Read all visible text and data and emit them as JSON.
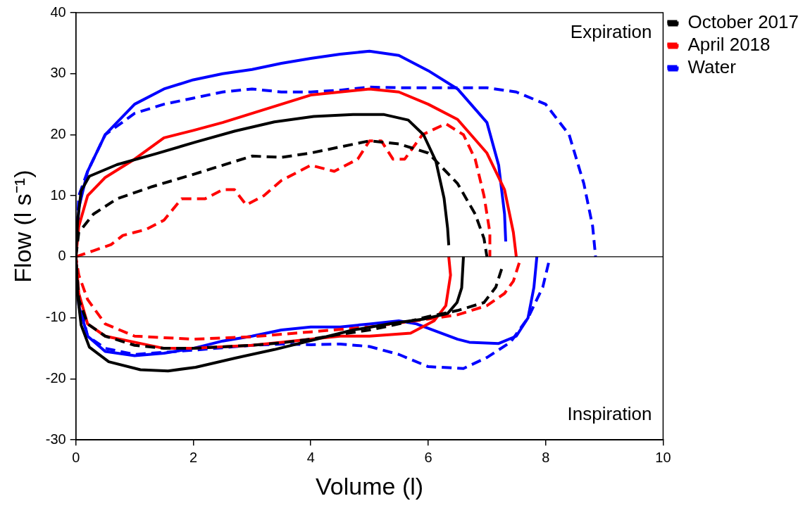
{
  "chart_data": {
    "type": "line",
    "xlabel": "Volume (l)",
    "ylabel": "Flow (l s⁻¹)",
    "xlim": [
      0,
      10
    ],
    "xticks": [
      0,
      2,
      4,
      6,
      8,
      10
    ],
    "ylim": [
      -30,
      40
    ],
    "yticks": [
      -30,
      -20,
      -10,
      0,
      10,
      20,
      30,
      40
    ],
    "grid": false,
    "legend": "top right",
    "marker": "none",
    "ref_lines": [
      {
        "axis": "y",
        "value": 0,
        "color": "#000000"
      }
    ],
    "annotations": [
      "Expiration",
      "Inspiration"
    ],
    "series": [
      {
        "color": "#000000",
        "line_style": "solid",
        "x": [
          0,
          0.03,
          0.09,
          0.23,
          0.7,
          1.37,
          2.04,
          2.71,
          3.38,
          4.05,
          4.72,
          5.25,
          5.66,
          5.92,
          6.13,
          6.27,
          6.33,
          6.35,
          6.5,
          6.6,
          6.57,
          6.49,
          6.33,
          5.92,
          5.39,
          4.72,
          4.05,
          3.38,
          2.71,
          2.04,
          1.57,
          1.1,
          0.56,
          0.23,
          0.09,
          0.03,
          0
        ],
        "values": [
          0,
          5.9,
          10.8,
          13.2,
          15.1,
          16.9,
          18.8,
          20.6,
          22.1,
          23,
          23.3,
          23.3,
          22.4,
          20,
          15.7,
          9.6,
          4.7,
          1.9,
          null,
          0,
          -5.1,
          -7.5,
          -9.3,
          -10.2,
          -10.9,
          -12,
          -13.6,
          -15.2,
          -16.6,
          -18.1,
          -18.7,
          -18.5,
          -17.2,
          -14.8,
          -11.2,
          -6.3,
          0
        ]
      },
      {
        "name": "October 2017",
        "color": "#000000",
        "line_style": "dashed",
        "x": [
          0,
          0.05,
          0.3,
          0.7,
          1.3,
          2,
          2.5,
          3,
          3.5,
          4,
          4.5,
          5,
          5.5,
          6,
          6.5,
          6.8,
          6.95,
          7,
          7.1,
          7.25,
          7.15,
          6.95,
          6.5,
          6,
          5.5,
          5,
          4.5,
          4,
          3.5,
          3,
          2,
          1.5,
          1,
          0.5,
          0.2,
          0.05,
          0
        ],
        "values": [
          0,
          4,
          7,
          9.5,
          11.5,
          13.5,
          15,
          16.5,
          16.3,
          17,
          18,
          19,
          18.5,
          17,
          12,
          7,
          3,
          0,
          null,
          -2,
          -5,
          -7.5,
          -8.8,
          -9.8,
          -11,
          -12,
          -12.7,
          -13.5,
          -14.1,
          -14.5,
          -15,
          -15,
          -14.5,
          -13,
          -11,
          -7,
          0
        ]
      },
      {
        "color": "#ff0000",
        "line_style": "solid",
        "x": [
          0,
          0.05,
          0.2,
          0.5,
          1,
          1.5,
          2,
          2.5,
          3,
          3.5,
          4,
          4.5,
          5,
          5.5,
          6,
          6.5,
          7,
          7.3,
          7.45,
          7.5,
          7,
          6.35,
          6.38,
          6.3,
          6.1,
          5.7,
          5,
          4.5,
          4,
          3.5,
          3,
          2,
          1.5,
          1,
          0.5,
          0.2,
          0.05,
          0
        ],
        "values": [
          0,
          5,
          10,
          13,
          16,
          19.5,
          20.7,
          22,
          23.5,
          25,
          26.5,
          27,
          27.5,
          27,
          25,
          22.5,
          17,
          11,
          4,
          0,
          null,
          0,
          -3,
          -8,
          -10.5,
          -12.5,
          -13,
          -13,
          -13.5,
          -14,
          -14.5,
          -15,
          -15,
          -14,
          -13,
          -11,
          -6,
          0
        ]
      },
      {
        "name": "April 2018",
        "color": "#ff0000",
        "line_style": "dashed",
        "x": [
          0,
          0.3,
          0.6,
          0.8,
          1,
          1.2,
          1.5,
          1.8,
          2.2,
          2.5,
          2.7,
          2.9,
          3.2,
          3.5,
          4,
          4.4,
          4.8,
          5,
          5.2,
          5.4,
          5.6,
          5.9,
          6.3,
          6.6,
          6.8,
          6.95,
          7.05,
          7.05,
          7.3,
          7.55,
          7.45,
          7.3,
          7,
          6.5,
          6,
          5,
          4,
          3,
          2,
          1,
          0.5,
          0.2,
          0.05,
          0
        ],
        "values": [
          0,
          1,
          2,
          3.5,
          4,
          4.5,
          6,
          9.5,
          9.5,
          11,
          11,
          8.5,
          10,
          12.5,
          15,
          14,
          16,
          19,
          19,
          16,
          16,
          20,
          21.8,
          20,
          16,
          10,
          4,
          0,
          null,
          -1,
          -4,
          -6,
          -8,
          -9.5,
          -10.2,
          -11.5,
          -12.3,
          -13.1,
          -13.5,
          -13,
          -11,
          -7,
          -3,
          0
        ]
      },
      {
        "color": "#0000ff",
        "line_style": "solid",
        "x": [
          0,
          0.05,
          0.2,
          0.5,
          1,
          1.5,
          2,
          2.5,
          3,
          3.5,
          4,
          4.5,
          5,
          5.5,
          6,
          6.5,
          7,
          7.2,
          7.3,
          7.32,
          7.6,
          7.85,
          7.8,
          7.7,
          7.5,
          7.2,
          6.7,
          6.5,
          5.8,
          5.5,
          5,
          4.5,
          4,
          3.5,
          3,
          2.5,
          2,
          1.5,
          1,
          0.5,
          0.2,
          0.05,
          0
        ],
        "values": [
          0,
          8,
          14,
          20,
          25,
          27.5,
          29,
          30,
          30.7,
          31.7,
          32.5,
          33.2,
          33.7,
          33,
          30.5,
          27.5,
          22,
          15,
          7,
          2.5,
          null,
          0,
          -5,
          -10,
          -13,
          -14.2,
          -14,
          -13.5,
          -11,
          -10.5,
          -11,
          -11.5,
          -11.5,
          -12,
          -13,
          -13.8,
          -15,
          -15.8,
          -16.2,
          -15.5,
          -13,
          -8,
          0
        ]
      },
      {
        "name": "Water",
        "color": "#0000ff",
        "line_style": "dashed",
        "x": [
          0,
          0.05,
          0.2,
          0.5,
          1,
          1.5,
          2,
          2.5,
          3,
          3.5,
          4,
          4.5,
          5,
          5.5,
          6,
          7,
          7.5,
          8,
          8.4,
          8.65,
          8.8,
          8.85,
          8.45,
          8.05,
          7.95,
          7.7,
          7.4,
          7,
          6.6,
          6,
          5.5,
          5,
          4.5,
          4,
          3.5,
          3,
          2,
          1,
          0.5,
          0.2,
          0.05,
          0
        ],
        "values": [
          0,
          10,
          14,
          20,
          23.5,
          25,
          26,
          27,
          27.5,
          27,
          27,
          27.3,
          27.8,
          27.7,
          27.7,
          27.7,
          27,
          25,
          20,
          12,
          5,
          0,
          null,
          -1,
          -5,
          -10,
          -14,
          -16.5,
          -18.3,
          -18,
          -16,
          -14.7,
          -14.3,
          -14.4,
          -14.3,
          -14.5,
          -15.3,
          -16,
          -15,
          -13,
          -7,
          0
        ]
      }
    ]
  }
}
